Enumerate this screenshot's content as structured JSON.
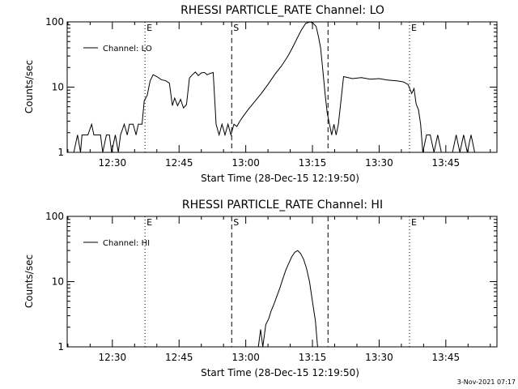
{
  "footer": {
    "stamp": "3-Nov-2021 07:17"
  },
  "chart_data": [
    {
      "type": "line",
      "title": "RHESSI PARTICLE_RATE Channel: LO",
      "xlabel": "Start Time (28-Dec-15 12:19:50)",
      "ylabel": "Counts/sec",
      "y_scale": "log",
      "ylim": [
        1,
        100
      ],
      "y_ticks": [
        {
          "value": 1,
          "label": "1"
        },
        {
          "value": 10,
          "label": "10"
        },
        {
          "value": 100,
          "label": "100"
        }
      ],
      "xlim": [
        "12:19:50",
        "13:56:30"
      ],
      "x_ticks": [
        "12:30",
        "12:45",
        "13:00",
        "13:15",
        "13:30",
        "13:45"
      ],
      "legend": {
        "position": "top-left",
        "entries": [
          "Channel: LO"
        ]
      },
      "markers": [
        {
          "time": "12:37:20",
          "style": "dotted",
          "label": "E"
        },
        {
          "time": "12:56:50",
          "style": "dashed",
          "label": "S"
        },
        {
          "time": "13:18:30",
          "style": "dashed",
          "label": ""
        },
        {
          "time": "13:36:50",
          "style": "dotted",
          "label": "E"
        },
        {
          "time": "13:56:30",
          "style": "dotted",
          "label": ""
        }
      ],
      "series": [
        {
          "name": "Channel: LO",
          "x": [
            "12:21:20",
            "12:22:10",
            "12:22:50",
            "12:23:10",
            "12:24:30",
            "12:25:20",
            "12:25:50",
            "12:26:30",
            "12:27:20",
            "12:27:50",
            "12:28:40",
            "12:29:20",
            "12:29:50",
            "12:30:40",
            "12:31:20",
            "12:31:50",
            "12:32:40",
            "12:33:20",
            "12:33:50",
            "12:34:40",
            "12:35:20",
            "12:35:50",
            "12:36:40",
            "12:37:10",
            "12:37:50",
            "12:38:30",
            "12:39:10",
            "12:40:00",
            "12:41:00",
            "12:42:00",
            "12:42:50",
            "12:43:30",
            "12:44:00",
            "12:44:40",
            "12:45:20",
            "12:46:00",
            "12:46:40",
            "12:47:20",
            "12:48:00",
            "12:48:40",
            "12:49:20",
            "12:50:00",
            "12:50:40",
            "12:51:20",
            "12:52:00",
            "12:52:40",
            "12:53:20",
            "12:54:00",
            "12:54:40",
            "12:55:20",
            "12:56:00",
            "12:56:40",
            "12:57:20",
            "12:58:00",
            "12:58:40",
            "12:59:20",
            "13:00:30",
            "13:02:00",
            "13:03:30",
            "13:05:00",
            "13:06:30",
            "13:08:00",
            "13:09:30",
            "13:10:30",
            "13:11:30",
            "13:12:30",
            "13:13:30",
            "13:14:30",
            "13:15:10",
            "13:15:50",
            "13:16:20",
            "13:16:50",
            "13:17:20",
            "13:17:50",
            "13:18:20",
            "13:18:50",
            "13:19:20",
            "13:19:50",
            "13:20:20",
            "13:20:50",
            "13:22:00",
            "13:24:00",
            "13:26:00",
            "13:28:00",
            "13:30:00",
            "13:32:00",
            "13:34:00",
            "13:35:30",
            "13:36:30",
            "13:37:20",
            "13:37:50",
            "13:38:20",
            "13:38:50",
            "13:39:20",
            "13:39:50",
            "13:40:40",
            "13:41:30",
            "13:42:20",
            "13:43:10",
            "13:44:00",
            "13:44:50",
            "13:45:40",
            "13:46:30",
            "13:47:20",
            "13:48:10",
            "13:49:00",
            "13:49:50",
            "13:50:40",
            "13:51:30",
            "13:52:20"
          ],
          "y": [
            1.0,
            1.85,
            1.0,
            1.85,
            1.85,
            2.7,
            1.85,
            1.85,
            1.85,
            1.0,
            1.85,
            1.85,
            1.0,
            1.85,
            1.0,
            1.85,
            2.7,
            1.85,
            2.7,
            2.7,
            1.85,
            2.7,
            2.7,
            6.2,
            7.5,
            12.5,
            15.5,
            14.5,
            13.0,
            12.5,
            11.5,
            5.2,
            6.8,
            5.2,
            6.5,
            4.8,
            5.4,
            13.8,
            15.5,
            17.0,
            15.0,
            16.5,
            16.8,
            15.5,
            16.2,
            16.8,
            2.7,
            1.85,
            2.7,
            1.85,
            2.7,
            1.85,
            2.7,
            2.5,
            3.0,
            3.5,
            4.5,
            6.0,
            8.0,
            11.0,
            15.5,
            21.0,
            30.0,
            40.0,
            55.0,
            75.0,
            95.0,
            100.0,
            95.0,
            85.0,
            60.0,
            40.0,
            18.0,
            8.0,
            4.0,
            2.7,
            1.85,
            2.7,
            1.85,
            2.7,
            14.5,
            13.5,
            14.0,
            13.2,
            13.5,
            12.8,
            12.5,
            12.0,
            11.0,
            8.0,
            9.5,
            5.5,
            4.5,
            2.7,
            1.0,
            1.85,
            1.85,
            1.0,
            1.85,
            1.0,
            1.0,
            1.0,
            1.0,
            1.85,
            1.0,
            1.85,
            1.0,
            1.85,
            1.0,
            1.0
          ]
        }
      ]
    },
    {
      "type": "line",
      "title": "RHESSI PARTICLE_RATE Channel: HI",
      "xlabel": "Start Time (28-Dec-15 12:19:50)",
      "ylabel": "Counts/sec",
      "y_scale": "log",
      "ylim": [
        1,
        100
      ],
      "y_ticks": [
        {
          "value": 1,
          "label": "1"
        },
        {
          "value": 10,
          "label": "10"
        },
        {
          "value": 100,
          "label": "100"
        }
      ],
      "xlim": [
        "12:19:50",
        "13:56:30"
      ],
      "x_ticks": [
        "12:30",
        "12:45",
        "13:00",
        "13:15",
        "13:30",
        "13:45"
      ],
      "legend": {
        "position": "top-left",
        "entries": [
          "Channel: HI"
        ]
      },
      "markers": [
        {
          "time": "12:37:20",
          "style": "dotted",
          "label": "E"
        },
        {
          "time": "12:56:50",
          "style": "dashed",
          "label": "S"
        },
        {
          "time": "13:18:30",
          "style": "dashed",
          "label": ""
        },
        {
          "time": "13:36:50",
          "style": "dotted",
          "label": "E"
        },
        {
          "time": "13:56:30",
          "style": "dotted",
          "label": ""
        }
      ],
      "series": [
        {
          "name": "Channel: HI",
          "x": [
            "13:02:50",
            "13:03:20",
            "13:03:50",
            "13:04:30",
            "13:05:10",
            "13:05:40",
            "13:06:20",
            "13:07:00",
            "13:07:40",
            "13:08:20",
            "13:09:00",
            "13:09:40",
            "13:10:20",
            "13:11:00",
            "13:11:40",
            "13:12:20",
            "13:13:00",
            "13:13:40",
            "13:14:20",
            "13:15:00",
            "13:15:40",
            "13:16:10"
          ],
          "y": [
            1.0,
            1.85,
            1.0,
            2.2,
            2.7,
            3.5,
            4.5,
            6.0,
            8.0,
            11.0,
            15.0,
            19.0,
            24.0,
            28.0,
            30.0,
            27.0,
            22.0,
            16.0,
            10.0,
            5.0,
            2.5,
            1.0
          ]
        }
      ]
    }
  ]
}
